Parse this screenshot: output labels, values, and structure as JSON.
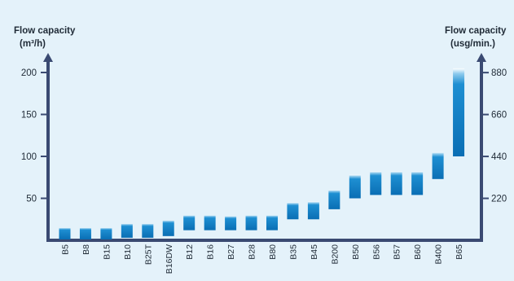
{
  "colors": {
    "background": "#e4f2fa",
    "axis": "#3a4a72",
    "bar_top": "#ffffff",
    "bar_main": "#1e8fd2",
    "bar_bottom": "#0a6eb4"
  },
  "chart_data": {
    "type": "bar",
    "style": "floating range bars",
    "left_axis": {
      "title_line1": "Flow capacity",
      "title_line2": "(m³/h)",
      "ticks": [
        "50",
        "100",
        "150",
        "200"
      ],
      "tick_values": [
        50,
        100,
        150,
        200
      ],
      "ylim": [
        0,
        210
      ]
    },
    "right_axis": {
      "title_line1": "Flow capacity",
      "title_line2": "(usg/min.)",
      "ticks": [
        "220",
        "440",
        "660",
        "880"
      ],
      "tick_values": [
        220,
        440,
        660,
        880
      ]
    },
    "categories": [
      "B5",
      "B8",
      "B15",
      "B10",
      "B25T",
      "B16DW",
      "B12",
      "B16",
      "B27",
      "B28",
      "B80",
      "B35",
      "B45",
      "B200",
      "B50",
      "B56",
      "B57",
      "B60",
      "B400",
      "B65"
    ],
    "ranges": [
      [
        1,
        15
      ],
      [
        1,
        15
      ],
      [
        1,
        15
      ],
      [
        3,
        20
      ],
      [
        3,
        20
      ],
      [
        5,
        24
      ],
      [
        12,
        30
      ],
      [
        12,
        30
      ],
      [
        12,
        29
      ],
      [
        12,
        30
      ],
      [
        12,
        30
      ],
      [
        25,
        45
      ],
      [
        25,
        46
      ],
      [
        37,
        60
      ],
      [
        50,
        78
      ],
      [
        54,
        82
      ],
      [
        54,
        82
      ],
      [
        54,
        82
      ],
      [
        73,
        105
      ],
      [
        100,
        205
      ]
    ],
    "grid": false
  }
}
